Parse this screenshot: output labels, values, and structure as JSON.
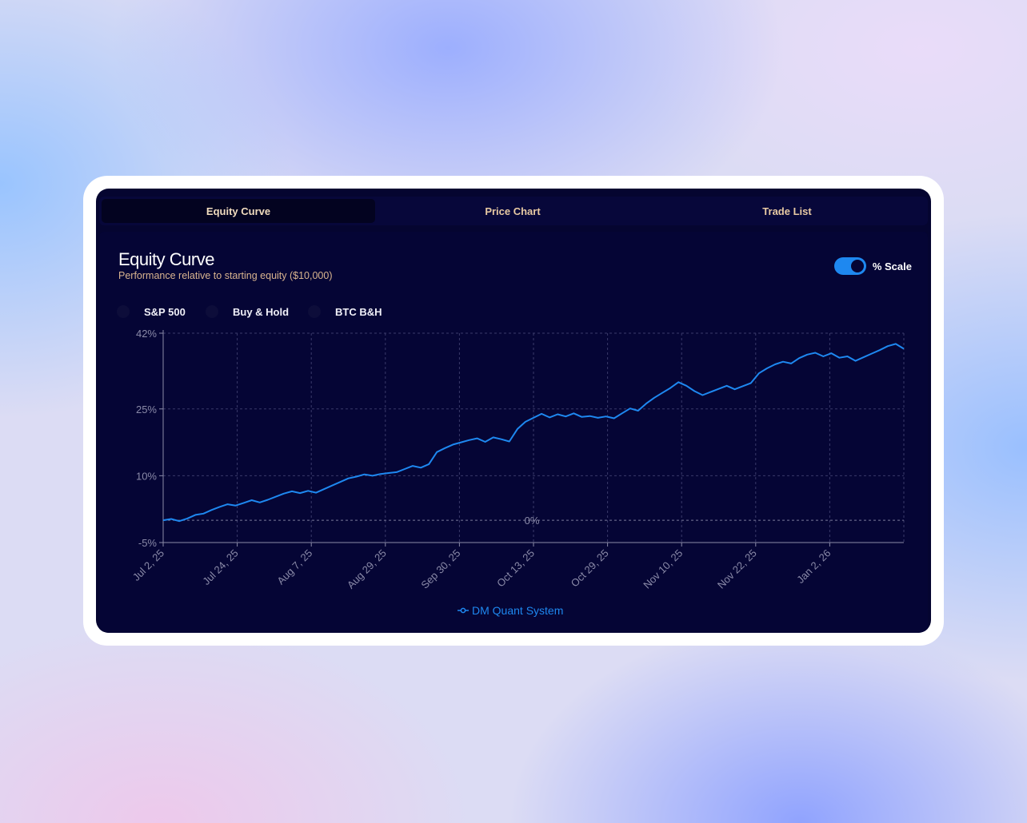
{
  "tabs": [
    {
      "label": "Equity Curve",
      "active": true
    },
    {
      "label": "Price Chart",
      "active": false
    },
    {
      "label": "Trade List",
      "active": false
    }
  ],
  "header": {
    "title": "Equity Curve",
    "subtitle": "Performance relative to starting equity ($10,000)"
  },
  "scale_toggle": {
    "label": "% Scale",
    "on": true
  },
  "benchmarks": [
    {
      "label": "S&P 500"
    },
    {
      "label": "Buy & Hold"
    },
    {
      "label": "BTC B&H"
    }
  ],
  "colors": {
    "accent": "#1e88f0",
    "tab_text": "#e7c9a3",
    "tab_text_active": "#f1dcbf",
    "subtitle": "#d9b48f",
    "grid": "#3a3a6a",
    "axis_text": "#8a8aa8"
  },
  "chart_data": {
    "type": "line",
    "title": "",
    "xlabel": "",
    "ylabel": "",
    "ylim": [
      -5,
      42
    ],
    "y_ticks": [
      "42%",
      "25%",
      "10%",
      "-5%"
    ],
    "y_tick_values": [
      42,
      25,
      10,
      -5
    ],
    "x_ticks": [
      "Jul 2, 25",
      "Jul 24, 25",
      "Aug 7, 25",
      "Aug 29, 25",
      "Sep 30, 25",
      "Oct 13, 25",
      "Oct 29, 25",
      "Nov 10, 25",
      "Nov 22, 25",
      "Jan 2, 26"
    ],
    "reference_line": {
      "value": 0,
      "label": "0%"
    },
    "grid": true,
    "legend_position": "bottom",
    "series": [
      {
        "name": "DM Quant System",
        "values": [
          0.0,
          0.3,
          -0.2,
          0.4,
          1.2,
          1.5,
          2.3,
          3.0,
          3.6,
          3.3,
          3.9,
          4.5,
          4.0,
          4.6,
          5.3,
          6.0,
          6.5,
          6.1,
          6.6,
          6.2,
          7.0,
          7.8,
          8.6,
          9.4,
          9.8,
          10.3,
          10.0,
          10.4,
          10.6,
          10.8,
          11.5,
          12.2,
          11.8,
          12.6,
          15.3,
          16.2,
          17.0,
          17.5,
          18.0,
          18.4,
          17.6,
          18.6,
          18.2,
          17.7,
          20.5,
          22.1,
          23.0,
          23.9,
          23.1,
          23.8,
          23.3,
          24.0,
          23.2,
          23.4,
          23.0,
          23.3,
          22.9,
          24.0,
          25.1,
          24.6,
          26.2,
          27.5,
          28.6,
          29.7,
          31.0,
          30.2,
          29.0,
          28.1,
          28.8,
          29.5,
          30.2,
          29.4,
          30.1,
          30.8,
          33.0,
          34.1,
          35.0,
          35.6,
          35.2,
          36.4,
          37.2,
          37.6,
          36.8,
          37.5,
          36.5,
          36.8,
          35.8,
          36.6,
          37.4,
          38.2,
          39.1,
          39.6,
          38.5
        ]
      }
    ]
  }
}
